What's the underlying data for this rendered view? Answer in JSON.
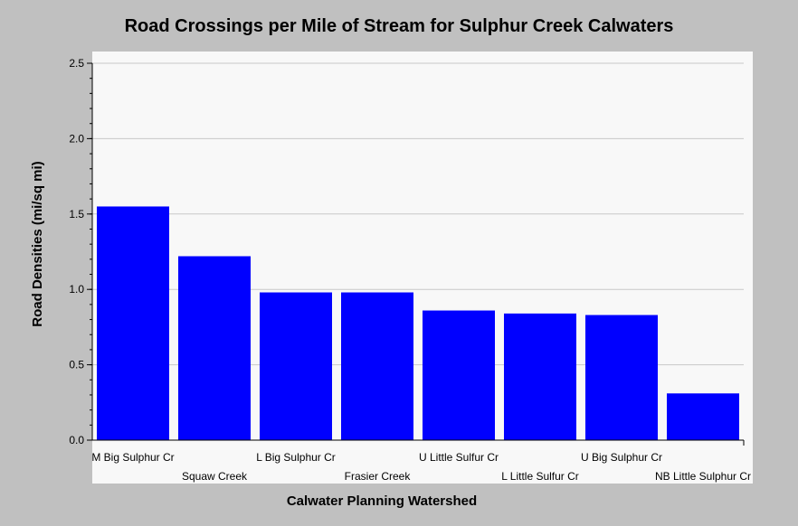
{
  "chart_data": {
    "type": "bar",
    "title": "Road Crossings per Mile of Stream for Sulphur Creek Calwaters",
    "xlabel": "Calwater Planning Watershed",
    "ylabel": "Road Densities (mi/sq mi)",
    "categories": [
      "M Big Sulphur Cr",
      "Squaw Creek",
      "L Big Sulphur Cr",
      "Frasier Creek",
      "U Little Sulfur Cr",
      "L Little Sulfur Cr",
      "U Big Sulphur Cr",
      "NB Little Sulphur Cr"
    ],
    "values": [
      1.55,
      1.22,
      0.98,
      0.98,
      0.86,
      0.84,
      0.83,
      0.31
    ],
    "ylim": [
      0,
      2.5
    ],
    "yticks": [
      "0.0",
      "0.5",
      "1.0",
      "1.5",
      "2.0",
      "2.5"
    ],
    "grid": true,
    "bar_color": "#0000ff",
    "plot_background": "#f8f8f8",
    "page_background": "#c0c0c0"
  }
}
